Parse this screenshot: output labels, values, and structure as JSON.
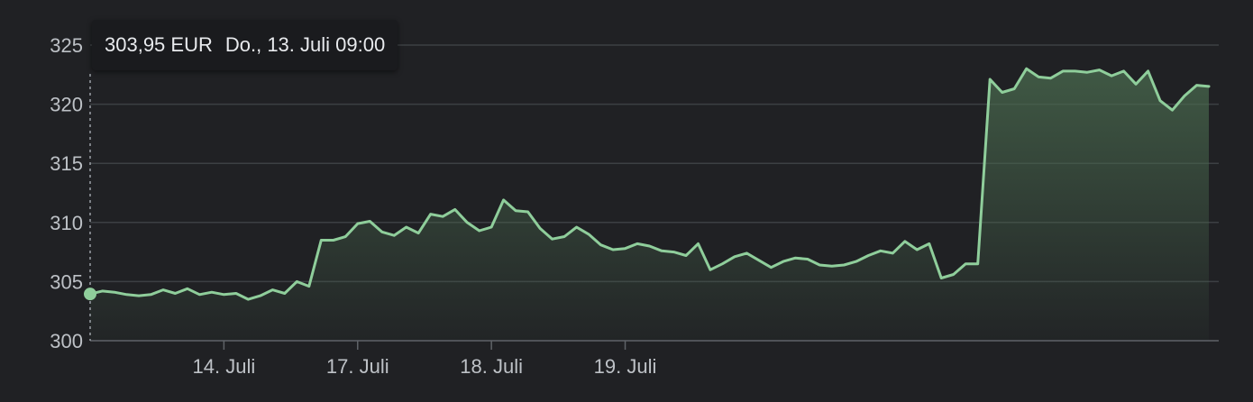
{
  "colors": {
    "background": "#202124",
    "line": "#8fce9b",
    "fill_top": "#4a6b4f",
    "grid": "#3c4043",
    "text": "#bdc1c6"
  },
  "tooltip": {
    "price": "303,95 EUR",
    "time": "Do., 13. Juli 09:00"
  },
  "chart_data": {
    "type": "area",
    "title": "",
    "xlabel": "",
    "ylabel": "",
    "ylim": [
      300,
      325
    ],
    "y_ticks": [
      "300",
      "305",
      "310",
      "315",
      "320",
      "325"
    ],
    "x_ticks": [
      "14. Juli",
      "17. Juli",
      "18. Juli",
      "19. Juli"
    ],
    "x_tick_positions": [
      11,
      22,
      33,
      44
    ],
    "grid": true,
    "hover_index": 0,
    "series": [
      {
        "values": [
          303.95,
          304.2,
          304.1,
          303.9,
          303.8,
          303.9,
          304.3,
          304.0,
          304.4,
          303.9,
          304.1,
          303.9,
          304.0,
          303.5,
          303.8,
          304.3,
          304.0,
          305.0,
          304.6,
          308.5,
          308.5,
          308.8,
          309.9,
          310.1,
          309.2,
          308.9,
          309.6,
          309.1,
          310.7,
          310.5,
          311.1,
          310.0,
          309.3,
          309.6,
          311.9,
          311.0,
          310.9,
          309.5,
          308.6,
          308.8,
          309.6,
          309.0,
          308.1,
          307.7,
          307.8,
          308.2,
          308.0,
          307.6,
          307.5,
          307.2,
          308.2,
          306.0,
          306.5,
          307.1,
          307.4,
          306.8,
          306.2,
          306.7,
          307.0,
          306.9,
          306.4,
          306.3,
          306.4,
          306.7,
          307.2,
          307.6,
          307.4,
          308.4,
          307.7,
          308.2,
          305.3,
          305.6,
          306.5,
          306.5,
          322.1,
          321.0,
          321.3,
          323.0,
          322.3,
          322.2,
          322.8,
          322.8,
          322.7,
          322.9,
          322.4,
          322.8,
          321.7,
          322.8,
          320.3,
          319.5,
          320.7,
          321.6,
          321.5
        ]
      }
    ]
  }
}
